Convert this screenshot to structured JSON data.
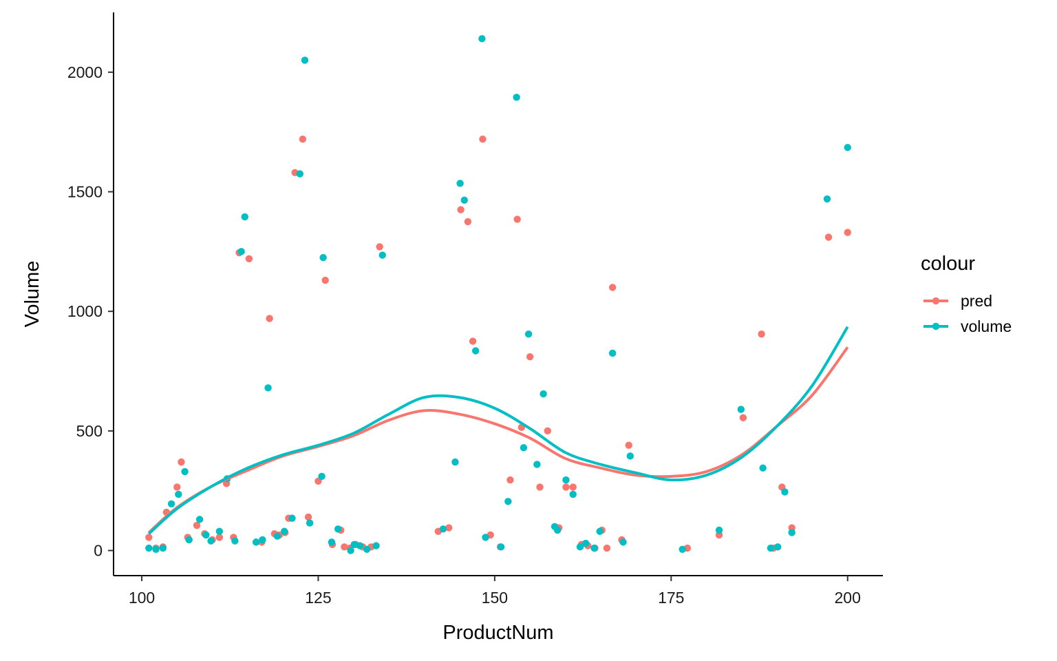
{
  "chart_data": {
    "type": "scatter",
    "xlabel": "ProductNum",
    "ylabel": "Volume",
    "xlim": [
      96,
      205
    ],
    "ylim": [
      -105,
      2250
    ],
    "x_ticks": [
      100,
      125,
      150,
      175,
      200
    ],
    "y_ticks": [
      0,
      500,
      1000,
      1500,
      2000
    ],
    "grid": false,
    "legend": {
      "title": "colour",
      "placement": "right"
    },
    "series": [
      {
        "name": "pred",
        "color": "#F8766D",
        "points": [
          [
            101,
            55
          ],
          [
            102,
            10
          ],
          [
            103,
            15
          ],
          [
            103.5,
            160
          ],
          [
            105,
            265
          ],
          [
            105.6,
            370
          ],
          [
            106.5,
            55
          ],
          [
            107.8,
            105
          ],
          [
            108.9,
            70
          ],
          [
            110,
            45
          ],
          [
            111,
            55
          ],
          [
            112,
            280
          ],
          [
            113,
            55
          ],
          [
            113.8,
            1245
          ],
          [
            115.2,
            1220
          ],
          [
            116.2,
            35
          ],
          [
            117,
            35
          ],
          [
            118.1,
            970
          ],
          [
            118.8,
            70
          ],
          [
            119.5,
            65
          ],
          [
            120.3,
            75
          ],
          [
            120.8,
            135
          ],
          [
            121.7,
            1580
          ],
          [
            122.8,
            1720
          ],
          [
            123.6,
            140
          ],
          [
            125,
            290
          ],
          [
            126,
            1130
          ],
          [
            127,
            25
          ],
          [
            128.2,
            85
          ],
          [
            128.7,
            15
          ],
          [
            129.5,
            10
          ],
          [
            130.3,
            25
          ],
          [
            131.3,
            15
          ],
          [
            132.5,
            15
          ],
          [
            133.7,
            1270
          ],
          [
            142,
            80
          ],
          [
            143.5,
            95
          ],
          [
            145.2,
            1425
          ],
          [
            146.2,
            1375
          ],
          [
            146.9,
            875
          ],
          [
            148.3,
            1720
          ],
          [
            149.4,
            65
          ],
          [
            150.8,
            15
          ],
          [
            152.2,
            295
          ],
          [
            153.2,
            1385
          ],
          [
            153.8,
            515
          ],
          [
            155,
            810
          ],
          [
            156.4,
            265
          ],
          [
            157.5,
            500
          ],
          [
            159.1,
            95
          ],
          [
            160.1,
            265
          ],
          [
            161.1,
            265
          ],
          [
            162.3,
            25
          ],
          [
            163.2,
            20
          ],
          [
            164.2,
            10
          ],
          [
            165.2,
            85
          ],
          [
            165.9,
            10
          ],
          [
            166.7,
            1100
          ],
          [
            168,
            45
          ],
          [
            169,
            440
          ],
          [
            177.3,
            10
          ],
          [
            181.8,
            65
          ],
          [
            185.2,
            555
          ],
          [
            187.8,
            905
          ],
          [
            189.5,
            10
          ],
          [
            190.7,
            265
          ],
          [
            192.1,
            95
          ],
          [
            197.3,
            1310
          ],
          [
            200,
            1330
          ]
        ],
        "trend": [
          [
            101,
            75
          ],
          [
            105,
            180
          ],
          [
            110,
            270
          ],
          [
            115,
            335
          ],
          [
            120,
            395
          ],
          [
            125,
            435
          ],
          [
            130,
            480
          ],
          [
            135,
            545
          ],
          [
            140,
            585
          ],
          [
            145,
            570
          ],
          [
            150,
            530
          ],
          [
            155,
            470
          ],
          [
            160,
            385
          ],
          [
            165,
            345
          ],
          [
            170,
            315
          ],
          [
            175,
            310
          ],
          [
            180,
            330
          ],
          [
            185,
            400
          ],
          [
            190,
            520
          ],
          [
            195,
            650
          ],
          [
            200,
            850
          ]
        ]
      },
      {
        "name": "volume",
        "color": "#00BFC4",
        "points": [
          [
            101,
            10
          ],
          [
            102,
            5
          ],
          [
            103,
            10
          ],
          [
            104.2,
            195
          ],
          [
            105.2,
            235
          ],
          [
            106.1,
            330
          ],
          [
            106.7,
            45
          ],
          [
            108.2,
            130
          ],
          [
            109.1,
            65
          ],
          [
            109.8,
            40
          ],
          [
            111,
            80
          ],
          [
            112.1,
            300
          ],
          [
            113.2,
            40
          ],
          [
            114.1,
            1250
          ],
          [
            114.6,
            1395
          ],
          [
            116.2,
            35
          ],
          [
            117.1,
            45
          ],
          [
            117.9,
            680
          ],
          [
            119.2,
            60
          ],
          [
            120.2,
            80
          ],
          [
            121.3,
            135
          ],
          [
            122.4,
            1575
          ],
          [
            123.1,
            2050
          ],
          [
            123.8,
            115
          ],
          [
            125.5,
            310
          ],
          [
            125.7,
            1225
          ],
          [
            126.9,
            35
          ],
          [
            127.8,
            90
          ],
          [
            129.6,
            0
          ],
          [
            130.1,
            25
          ],
          [
            130.9,
            20
          ],
          [
            131.9,
            5
          ],
          [
            133.2,
            20
          ],
          [
            134.1,
            1235
          ],
          [
            142.7,
            90
          ],
          [
            144.4,
            370
          ],
          [
            145.1,
            1535
          ],
          [
            145.7,
            1465
          ],
          [
            147.3,
            835
          ],
          [
            148.2,
            2140
          ],
          [
            148.7,
            55
          ],
          [
            150.9,
            15
          ],
          [
            151.9,
            205
          ],
          [
            153.1,
            1895
          ],
          [
            154.1,
            430
          ],
          [
            154.8,
            905
          ],
          [
            156,
            360
          ],
          [
            156.9,
            655
          ],
          [
            158.5,
            100
          ],
          [
            158.9,
            85
          ],
          [
            160.1,
            295
          ],
          [
            161.1,
            235
          ],
          [
            162.1,
            15
          ],
          [
            162.9,
            30
          ],
          [
            164.1,
            10
          ],
          [
            164.9,
            80
          ],
          [
            166.7,
            825
          ],
          [
            168.2,
            35
          ],
          [
            169.2,
            395
          ],
          [
            176.6,
            5
          ],
          [
            181.8,
            85
          ],
          [
            184.9,
            590
          ],
          [
            188,
            345
          ],
          [
            189.1,
            10
          ],
          [
            190.1,
            15
          ],
          [
            191.1,
            245
          ],
          [
            192.1,
            75
          ],
          [
            197.1,
            1470
          ],
          [
            200,
            1685
          ]
        ],
        "trend": [
          [
            101,
            70
          ],
          [
            105,
            175
          ],
          [
            110,
            270
          ],
          [
            115,
            345
          ],
          [
            120,
            400
          ],
          [
            125,
            440
          ],
          [
            130,
            490
          ],
          [
            135,
            570
          ],
          [
            140,
            640
          ],
          [
            145,
            640
          ],
          [
            150,
            595
          ],
          [
            155,
            510
          ],
          [
            160,
            410
          ],
          [
            165,
            360
          ],
          [
            170,
            325
          ],
          [
            175,
            295
          ],
          [
            180,
            315
          ],
          [
            185,
            390
          ],
          [
            190,
            520
          ],
          [
            195,
            690
          ],
          [
            200,
            935
          ]
        ]
      }
    ]
  }
}
